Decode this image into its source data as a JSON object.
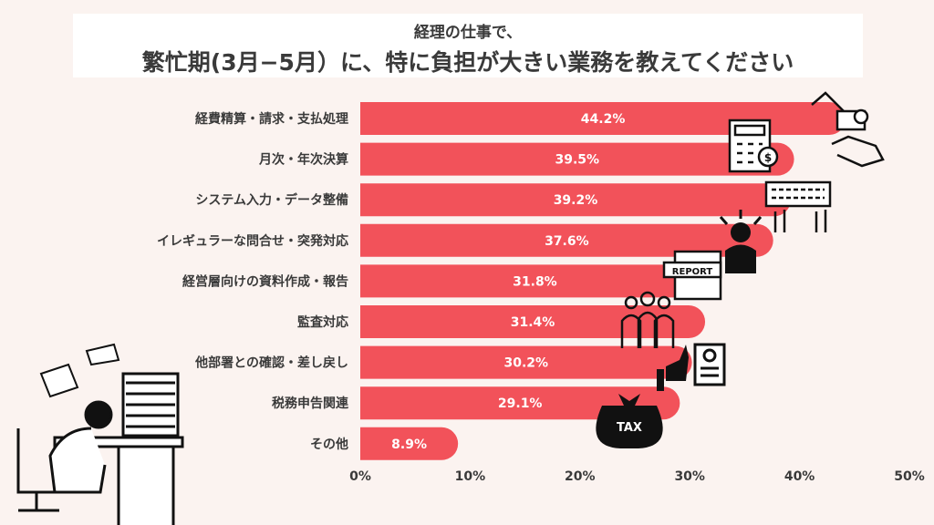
{
  "title": {
    "line1": "経理の仕事で、",
    "line2": "繁忙期(3月−5月）に、特に負担が大きい業務を教えてください"
  },
  "chart_data": {
    "type": "bar",
    "orientation": "horizontal",
    "categories": [
      "経費精算・請求・支払処理",
      "月次・年次決算",
      "システム入力・データ整備",
      "イレギュラーな問合せ・突発対応",
      "経営層向けの資料作成・報告",
      "監査対応",
      "他部署との確認・差し戻し",
      "税務申告関連",
      "その他"
    ],
    "values": [
      44.2,
      39.5,
      39.2,
      37.6,
      31.8,
      31.4,
      30.2,
      29.1,
      8.9
    ],
    "value_labels": [
      "44.2%",
      "39.5%",
      "39.2%",
      "37.6%",
      "31.8%",
      "31.4%",
      "30.2%",
      "29.1%",
      "8.9%"
    ],
    "xlim": [
      0,
      50
    ],
    "x_ticks": [
      "0%",
      "10%",
      "20%",
      "30%",
      "40%",
      "50%"
    ],
    "grid": false,
    "bar_color": "#f2525a",
    "decorations": [
      "tax-bag-icon",
      "document-reject-icon",
      "thumbs-down-icon",
      "team-icon",
      "report-icon",
      "stressed-person-icon",
      "keyboard-hands-icon",
      "calculator-invoice-icon",
      "hand-money-icon",
      "overworked-office-worker-illustration"
    ]
  }
}
